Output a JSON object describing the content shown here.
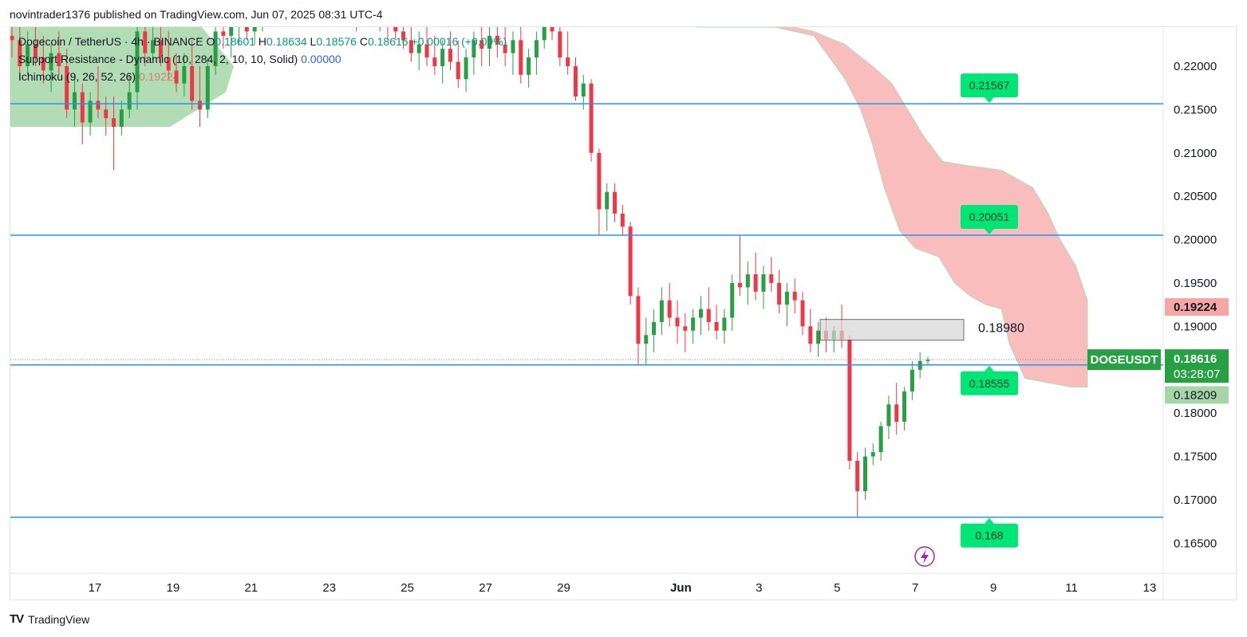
{
  "header": {
    "published_line": "novintrader1376 published on TradingView.com, Jun 07, 2025 08:31 UTC-4"
  },
  "legend": {
    "symbol": "Dogecoin / TetherUS · 4h · BINANCE",
    "o_label": "O",
    "o": "0.18601",
    "h_label": "H",
    "h": "0.18634",
    "l_label": "L",
    "l": "0.18576",
    "c_label": "C",
    "c": "0.18616",
    "change": "+0.00016 (+0.09%)",
    "indicator1": "Support Resistance - Dynamic (10, 284, 2, 10, 10, Solid)",
    "indicator1_value": "0.00000",
    "indicator2": "Ichimoku (9, 26, 52, 26)",
    "indicator2_value": "0.19224"
  },
  "footer": {
    "brand": "TradingView"
  },
  "colors": {
    "bull": "#26a043",
    "bear": "#f23645",
    "level_line": "#2196f3",
    "label_green": "#00e676",
    "cloud_red": "#f8b2b2",
    "cloud_green": "#a5d6a7",
    "price_tag": "#26a043",
    "ichimoku_tag": "#f7a6a6"
  },
  "chart_data": {
    "type": "candlestick",
    "symbol": "DOGEUSDT",
    "timeframe": "4h",
    "ylim": [
      0.162,
      0.2245
    ],
    "y_ticks": [
      "0.22000",
      "0.21500",
      "0.21000",
      "0.20500",
      "0.20000",
      "0.19500",
      "0.19000",
      "0.18000",
      "0.17500",
      "0.17000",
      "0.16500"
    ],
    "x_ticks": [
      {
        "label": "5",
        "day": 5
      },
      {
        "label": "17",
        "day": 17
      },
      {
        "label": "19",
        "day": 19
      },
      {
        "label": "21",
        "day": 21
      },
      {
        "label": "23",
        "day": 23
      },
      {
        "label": "25",
        "day": 25
      },
      {
        "label": "27",
        "day": 27
      },
      {
        "label": "29",
        "day": 29
      },
      {
        "label": "Jun",
        "day": 32
      },
      {
        "label": "3",
        "day": 34
      },
      {
        "label": "5",
        "day": 36
      },
      {
        "label": "7",
        "day": 38
      },
      {
        "label": "9",
        "day": 40
      },
      {
        "label": "11",
        "day": 42
      },
      {
        "label": "13",
        "day": 44
      }
    ],
    "support_resistance_levels": [
      {
        "value": 0.21567,
        "label": "0.21567"
      },
      {
        "value": 0.20051,
        "label": "0.20051"
      },
      {
        "value": 0.18555,
        "label": "0.18555"
      },
      {
        "value": 0.168,
        "label": "0.168"
      }
    ],
    "zone": {
      "from": 0.1884,
      "to": 0.1908,
      "label": "0.18980",
      "label_value": 0.1898
    },
    "last_price": {
      "symbol": "DOGEUSDT",
      "value": "0.18616",
      "countdown": "03:28:07"
    },
    "ichimoku_tags": [
      {
        "value": "0.19224",
        "kind": "span_a"
      },
      {
        "value": "0.18209",
        "kind": "span_b"
      }
    ],
    "candles": [
      [
        0.2235,
        0.225,
        0.221,
        0.223
      ],
      [
        0.223,
        0.2245,
        0.2185,
        0.22
      ],
      [
        0.22,
        0.224,
        0.219,
        0.2225
      ],
      [
        0.2225,
        0.225,
        0.22,
        0.221
      ],
      [
        0.221,
        0.2235,
        0.218,
        0.2195
      ],
      [
        0.2195,
        0.2225,
        0.217,
        0.2215
      ],
      [
        0.2215,
        0.224,
        0.219,
        0.22
      ],
      [
        0.22,
        0.222,
        0.214,
        0.215
      ],
      [
        0.215,
        0.219,
        0.213,
        0.217
      ],
      [
        0.217,
        0.218,
        0.211,
        0.2135
      ],
      [
        0.2135,
        0.217,
        0.212,
        0.216
      ],
      [
        0.216,
        0.22,
        0.214,
        0.215
      ],
      [
        0.215,
        0.2165,
        0.212,
        0.214
      ],
      [
        0.214,
        0.2165,
        0.208,
        0.213
      ],
      [
        0.213,
        0.216,
        0.212,
        0.215
      ],
      [
        0.215,
        0.219,
        0.214,
        0.217
      ],
      [
        0.217,
        0.225,
        0.215,
        0.224
      ],
      [
        0.224,
        0.226,
        0.22,
        0.2215
      ],
      [
        0.2215,
        0.225,
        0.2205,
        0.223
      ],
      [
        0.223,
        0.226,
        0.22,
        0.221
      ],
      [
        0.221,
        0.224,
        0.2185,
        0.2195
      ],
      [
        0.2195,
        0.2215,
        0.217,
        0.218
      ],
      [
        0.218,
        0.2215,
        0.2165,
        0.22
      ],
      [
        0.22,
        0.223,
        0.215,
        0.216
      ],
      [
        0.216,
        0.22,
        0.213,
        0.215
      ],
      [
        0.215,
        0.221,
        0.214,
        0.22
      ],
      [
        0.22,
        0.225,
        0.219,
        0.224
      ],
      [
        0.224,
        0.226,
        0.222,
        0.2235
      ],
      [
        0.2235,
        0.2255,
        0.221,
        0.2245
      ],
      [
        0.2245,
        0.227,
        0.2225,
        0.225
      ],
      [
        0.225,
        0.2275,
        0.223,
        0.224
      ],
      [
        0.224,
        0.2265,
        0.2225,
        0.225
      ],
      [
        0.225,
        0.228,
        0.224,
        0.226
      ],
      [
        0.226,
        0.229,
        0.2245,
        0.2275
      ],
      [
        0.2275,
        0.2295,
        0.2255,
        0.2265
      ],
      [
        0.2265,
        0.229,
        0.225,
        0.228
      ],
      [
        0.228,
        0.23,
        0.226,
        0.227
      ],
      [
        0.227,
        0.229,
        0.225,
        0.226
      ],
      [
        0.226,
        0.2285,
        0.2245,
        0.2275
      ],
      [
        0.2275,
        0.2295,
        0.226,
        0.228
      ],
      [
        0.228,
        0.23,
        0.2265,
        0.227
      ],
      [
        0.227,
        0.229,
        0.2255,
        0.2265
      ],
      [
        0.2265,
        0.2285,
        0.225,
        0.2275
      ],
      [
        0.2275,
        0.229,
        0.2255,
        0.226
      ],
      [
        0.226,
        0.228,
        0.224,
        0.2265
      ],
      [
        0.2265,
        0.2285,
        0.225,
        0.227
      ],
      [
        0.227,
        0.229,
        0.2255,
        0.226
      ],
      [
        0.226,
        0.2275,
        0.224,
        0.225
      ],
      [
        0.225,
        0.227,
        0.223,
        0.2245
      ],
      [
        0.2245,
        0.2265,
        0.223,
        0.224
      ],
      [
        0.224,
        0.226,
        0.222,
        0.223
      ],
      [
        0.223,
        0.225,
        0.2205,
        0.2215
      ],
      [
        0.2215,
        0.224,
        0.2195,
        0.2225
      ],
      [
        0.2225,
        0.2245,
        0.22,
        0.221
      ],
      [
        0.221,
        0.2235,
        0.219,
        0.22
      ],
      [
        0.22,
        0.223,
        0.218,
        0.222
      ],
      [
        0.222,
        0.224,
        0.2195,
        0.2205
      ],
      [
        0.2205,
        0.223,
        0.2175,
        0.2185
      ],
      [
        0.2185,
        0.222,
        0.217,
        0.221
      ],
      [
        0.221,
        0.224,
        0.219,
        0.223
      ],
      [
        0.223,
        0.225,
        0.22,
        0.222
      ],
      [
        0.222,
        0.225,
        0.22,
        0.2235
      ],
      [
        0.2235,
        0.226,
        0.221,
        0.2225
      ],
      [
        0.2225,
        0.225,
        0.22,
        0.2215
      ],
      [
        0.2215,
        0.224,
        0.219,
        0.223
      ],
      [
        0.223,
        0.2245,
        0.218,
        0.219
      ],
      [
        0.219,
        0.222,
        0.2175,
        0.221
      ],
      [
        0.221,
        0.224,
        0.219,
        0.223
      ],
      [
        0.223,
        0.227,
        0.222,
        0.226
      ],
      [
        0.226,
        0.228,
        0.223,
        0.224
      ],
      [
        0.224,
        0.226,
        0.22,
        0.221
      ],
      [
        0.221,
        0.224,
        0.219,
        0.22
      ],
      [
        0.22,
        0.221,
        0.216,
        0.2165
      ],
      [
        0.2165,
        0.219,
        0.215,
        0.218
      ],
      [
        0.218,
        0.2185,
        0.209,
        0.21
      ],
      [
        0.21,
        0.2105,
        0.2005,
        0.2035
      ],
      [
        0.2035,
        0.2065,
        0.201,
        0.2055
      ],
      [
        0.2055,
        0.2065,
        0.202,
        0.203
      ],
      [
        0.203,
        0.204,
        0.2005,
        0.2015
      ],
      [
        0.2015,
        0.202,
        0.1925,
        0.1935
      ],
      [
        0.1935,
        0.1945,
        0.1855,
        0.188
      ],
      [
        0.188,
        0.191,
        0.1855,
        0.189
      ],
      [
        0.189,
        0.192,
        0.187,
        0.1905
      ],
      [
        0.1905,
        0.1945,
        0.189,
        0.193
      ],
      [
        0.193,
        0.195,
        0.19,
        0.191
      ],
      [
        0.191,
        0.193,
        0.188,
        0.19
      ],
      [
        0.19,
        0.1915,
        0.187,
        0.1895
      ],
      [
        0.1895,
        0.192,
        0.188,
        0.191
      ],
      [
        0.191,
        0.1935,
        0.189,
        0.192
      ],
      [
        0.192,
        0.1945,
        0.1895,
        0.1905
      ],
      [
        0.1905,
        0.1925,
        0.1885,
        0.1895
      ],
      [
        0.1895,
        0.192,
        0.188,
        0.191
      ],
      [
        0.191,
        0.196,
        0.1895,
        0.195
      ],
      [
        0.195,
        0.2005,
        0.1935,
        0.1945
      ],
      [
        0.1945,
        0.1975,
        0.1925,
        0.196
      ],
      [
        0.196,
        0.1985,
        0.193,
        0.194
      ],
      [
        0.194,
        0.197,
        0.192,
        0.196
      ],
      [
        0.196,
        0.198,
        0.194,
        0.195
      ],
      [
        0.195,
        0.1965,
        0.1915,
        0.1925
      ],
      [
        0.1925,
        0.195,
        0.19,
        0.194
      ],
      [
        0.194,
        0.1955,
        0.1915,
        0.193
      ],
      [
        0.193,
        0.194,
        0.189,
        0.19
      ],
      [
        0.19,
        0.192,
        0.187,
        0.188
      ],
      [
        0.188,
        0.1905,
        0.1865,
        0.1895
      ],
      [
        0.1895,
        0.191,
        0.187,
        0.1885
      ],
      [
        0.1885,
        0.19,
        0.187,
        0.1895
      ],
      [
        0.1895,
        0.1925,
        0.1875,
        0.1885
      ],
      [
        0.1885,
        0.189,
        0.1735,
        0.1745
      ],
      [
        0.1745,
        0.1755,
        0.168,
        0.171
      ],
      [
        0.171,
        0.176,
        0.17,
        0.175
      ],
      [
        0.175,
        0.1765,
        0.174,
        0.1755
      ],
      [
        0.1755,
        0.179,
        0.1745,
        0.1785
      ],
      [
        0.1785,
        0.182,
        0.177,
        0.181
      ],
      [
        0.181,
        0.1835,
        0.1775,
        0.179
      ],
      [
        0.179,
        0.183,
        0.178,
        0.1825
      ],
      [
        0.1825,
        0.186,
        0.1815,
        0.185
      ],
      [
        0.185,
        0.187,
        0.184,
        0.186
      ],
      [
        0.186,
        0.1865,
        0.1855,
        0.18616
      ]
    ],
    "ichimoku_cloud": {
      "bearish_top": [
        [
          0,
          0.2245
        ],
        [
          0.2,
          0.225
        ],
        [
          0.3,
          0.224
        ],
        [
          0.38,
          0.2225
        ],
        [
          0.45,
          0.22
        ],
        [
          0.5,
          0.218
        ],
        [
          0.54,
          0.215
        ],
        [
          0.58,
          0.212
        ],
        [
          0.63,
          0.209
        ],
        [
          0.7,
          0.2085
        ],
        [
          0.78,
          0.208
        ],
        [
          0.86,
          0.206
        ],
        [
          0.9,
          0.203
        ],
        [
          0.93,
          0.2
        ],
        [
          0.97,
          0.197
        ],
        [
          1.0,
          0.193
        ]
      ],
      "bearish_bottom": [
        [
          0,
          0.2245
        ],
        [
          0.2,
          0.2245
        ],
        [
          0.3,
          0.2235
        ],
        [
          0.38,
          0.2185
        ],
        [
          0.42,
          0.215
        ],
        [
          0.45,
          0.211
        ],
        [
          0.48,
          0.206
        ],
        [
          0.52,
          0.201
        ],
        [
          0.56,
          0.199
        ],
        [
          0.62,
          0.198
        ],
        [
          0.66,
          0.195
        ],
        [
          0.7,
          0.1935
        ],
        [
          0.74,
          0.1925
        ],
        [
          0.78,
          0.192
        ],
        [
          0.8,
          0.188
        ],
        [
          0.84,
          0.184
        ],
        [
          0.9,
          0.1835
        ],
        [
          0.96,
          0.183
        ],
        [
          1.0,
          0.183
        ]
      ]
    }
  }
}
